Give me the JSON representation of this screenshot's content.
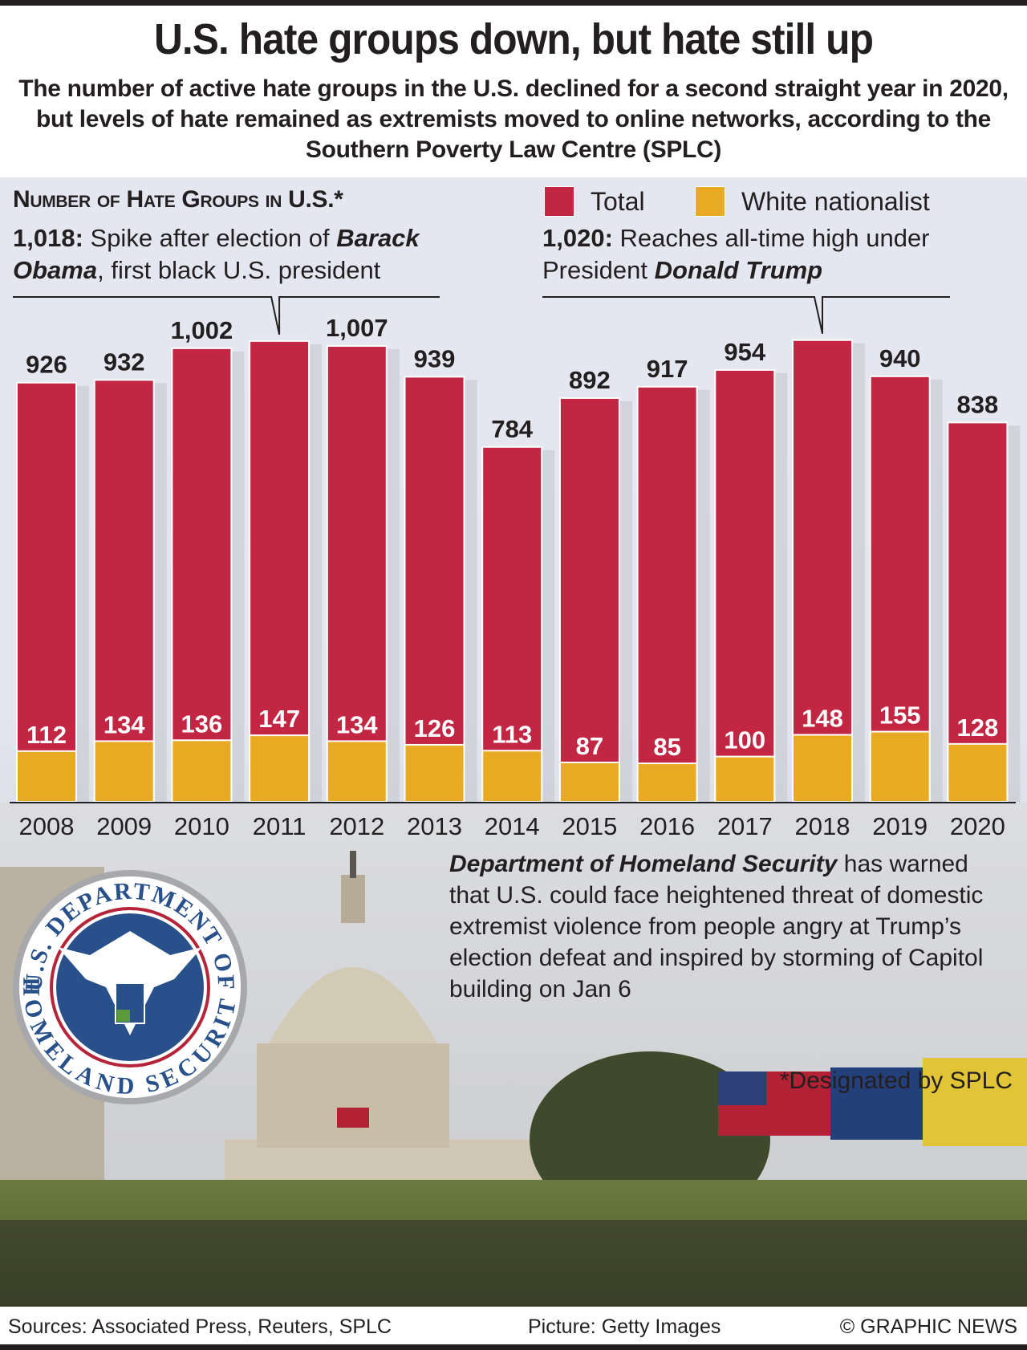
{
  "header": {
    "title": "U.S. hate groups down, but hate still up",
    "subtitle": "The number of active hate groups in the U.S. declined for a second straight year in 2020, but levels of hate remained as extremists moved to online networks, according to the Southern Poverty Law Centre (SPLC)"
  },
  "chart_data": {
    "type": "bar",
    "title": "Number of Hate Groups in U.S.*",
    "xlabel": "",
    "ylabel": "",
    "ylim": [
      0,
      1100
    ],
    "grid": false,
    "legend_position": "top-right",
    "categories": [
      "2008",
      "2009",
      "2010",
      "2011",
      "2012",
      "2013",
      "2014",
      "2015",
      "2016",
      "2017",
      "2018",
      "2019",
      "2020"
    ],
    "series": [
      {
        "name": "Total",
        "color": "#c22643",
        "values": [
          926,
          932,
          1002,
          1018,
          1007,
          939,
          784,
          892,
          917,
          954,
          1020,
          940,
          838
        ],
        "labels": [
          "926",
          "932",
          "1,002",
          "",
          "1,007",
          "939",
          "784",
          "892",
          "917",
          "954",
          "",
          "940",
          "838"
        ]
      },
      {
        "name": "White nationalist",
        "color": "#e8aa22",
        "values": [
          112,
          134,
          136,
          147,
          134,
          126,
          113,
          87,
          85,
          100,
          148,
          155,
          128
        ],
        "labels": [
          "112",
          "134",
          "136",
          "147",
          "134",
          "126",
          "113",
          "87",
          "85",
          "100",
          "148",
          "155",
          "128"
        ]
      }
    ],
    "annotations": [
      {
        "year": "2011",
        "value_label": "1,018:",
        "text_before": " Spike after election of ",
        "italic": "Barack Obama",
        "text_after": ", first black U.S. president"
      },
      {
        "year": "2018",
        "value_label": "1,020:",
        "text_before": " Reaches all-time high under President ",
        "italic": "Donald Trump",
        "text_after": ""
      }
    ]
  },
  "legend": {
    "total": "Total",
    "white_nationalist": "White nationalist"
  },
  "dhs": {
    "bold": "Department of Homeland Security",
    "rest": " has warned that U.S. could face heightened threat of domestic extremist violence from people angry at Trump’s election defeat and inspired by storming of Capitol building on Jan 6",
    "seal_top": "U.S. DEPARTMENT OF",
    "seal_bottom": "HOMELAND SECURITY"
  },
  "note": "*Designated by SPLC",
  "footer": {
    "sources": "Sources: Associated Press, Reuters, SPLC",
    "picture": "Picture: Getty Images",
    "credit": "© GRAPHIC NEWS"
  }
}
